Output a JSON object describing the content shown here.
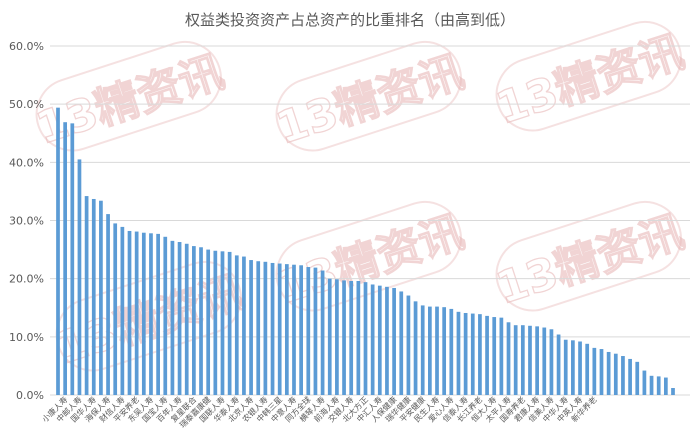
{
  "chart_data": {
    "type": "bar",
    "title": "权益类投资资产占总资产的比重排名（由高到低）",
    "xlabel": "",
    "ylabel": "",
    "ylim": [
      0,
      0.6
    ],
    "yticks": [
      "0.0%",
      "10.0%",
      "20.0%",
      "30.0%",
      "40.0%",
      "50.0%",
      "60.0%"
    ],
    "grid": true,
    "legend": "none",
    "bar_color": "#5b9bd5",
    "categories": [
      "小康人寿",
      "中邮人寿",
      "国华人寿",
      "海保人寿",
      "财信人寿",
      "平安养老",
      "东吴人寿",
      "国宝人寿",
      "百年人寿",
      "复星联合",
      "瑞泰嘉康健",
      "国联人寿",
      "华泰人寿",
      "北京人寿",
      "农银人寿",
      "中韩三星",
      "中意人寿",
      "同方全球",
      "横琴人寿",
      "前海人寿",
      "交银人寿",
      "北大方正",
      "中汇人寿",
      "人保健康",
      "瑞华健康",
      "平安健康",
      "民生人寿",
      "爱心人寿",
      "信泰人寿",
      "长江养老",
      "恒大人寿",
      "太平人寿",
      "国寿养老",
      "君康人寿",
      "信美人寿",
      "中华人寿",
      "中英人寿",
      "新华养老"
    ],
    "values": [
      0.494,
      0.469,
      0.405,
      0.337,
      0.311,
      0.289,
      0.281,
      0.277,
      0.263,
      0.256,
      0.248,
      0.246,
      0.238,
      0.229,
      0.226,
      0.224,
      0.219,
      0.197,
      0.196,
      0.188,
      0.184,
      0.178,
      0.154,
      0.151,
      0.141,
      0.139,
      0.134,
      0.12,
      0.118,
      0.113,
      0.095,
      0.088,
      0.079,
      0.071,
      0.062,
      0.04,
      0.03,
      0.012
    ],
    "all_bar_values": [
      0.494,
      0.469,
      0.467,
      0.405,
      0.342,
      0.337,
      0.334,
      0.311,
      0.295,
      0.289,
      0.282,
      0.281,
      0.279,
      0.278,
      0.277,
      0.272,
      0.265,
      0.263,
      0.26,
      0.256,
      0.254,
      0.25,
      0.248,
      0.247,
      0.246,
      0.24,
      0.238,
      0.232,
      0.23,
      0.229,
      0.227,
      0.226,
      0.225,
      0.224,
      0.223,
      0.22,
      0.219,
      0.214,
      0.2,
      0.199,
      0.197,
      0.196,
      0.196,
      0.194,
      0.19,
      0.188,
      0.186,
      0.184,
      0.178,
      0.171,
      0.161,
      0.154,
      0.152,
      0.152,
      0.151,
      0.148,
      0.143,
      0.141,
      0.14,
      0.139,
      0.136,
      0.134,
      0.133,
      0.125,
      0.12,
      0.12,
      0.119,
      0.118,
      0.116,
      0.113,
      0.104,
      0.095,
      0.094,
      0.092,
      0.088,
      0.081,
      0.079,
      0.074,
      0.071,
      0.067,
      0.062,
      0.057,
      0.042,
      0.033,
      0.032,
      0.03,
      0.012
    ]
  },
  "watermark": {
    "text": "13精资讯",
    "color": "#e8b9b9"
  }
}
